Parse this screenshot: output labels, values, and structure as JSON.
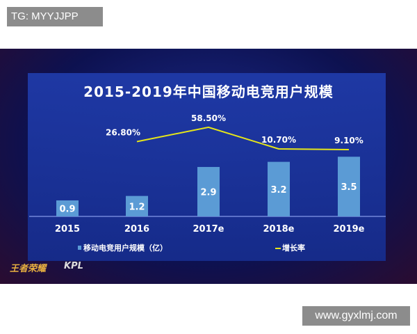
{
  "watermark_top": "TG: MYYJJPP",
  "watermark_bottom": "www.gyxlmj.com",
  "logos": [
    "王者荣耀",
    "KPL"
  ],
  "chart_data": {
    "type": "bar+line",
    "title": "2015-2019年中国移动电竞用户规模",
    "categories": [
      "2015",
      "2016",
      "2017e",
      "2018e",
      "2019e"
    ],
    "series": [
      {
        "name": "移动电竞用户规模（亿）",
        "type": "bar",
        "values": [
          0.9,
          1.2,
          2.9,
          3.2,
          3.5
        ],
        "labels": [
          "0.9",
          "1.2",
          "2.9",
          "3.2",
          "3.5"
        ],
        "color": "#5b9bd5"
      },
      {
        "name": "增长率",
        "type": "line",
        "values": [
          null,
          26.8,
          58.5,
          10.7,
          9.1
        ],
        "labels": [
          "",
          "26.80%",
          "58.50%",
          "10.70%",
          "9.10%"
        ],
        "color": "#e6e619"
      }
    ],
    "grid": false,
    "legend": "bottom"
  }
}
